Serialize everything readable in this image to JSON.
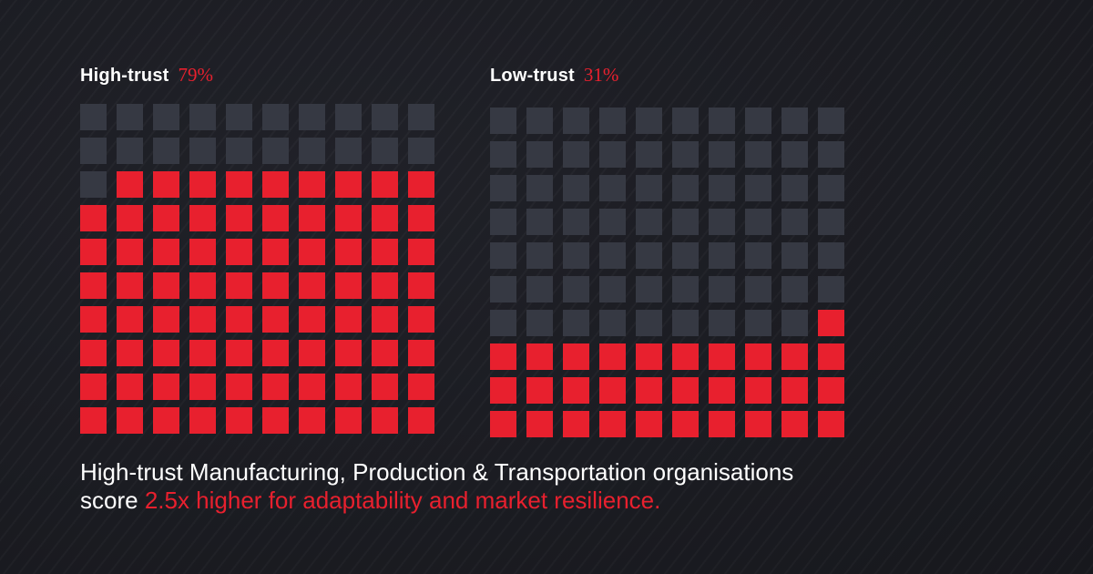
{
  "colors": {
    "filled": "#e8202e",
    "empty": "#363943",
    "background": "#1b1c22",
    "text": "#ffffff"
  },
  "chart_data": [
    {
      "type": "waffle",
      "label": "High-trust",
      "value_text": "79%",
      "value": 79,
      "total": 100,
      "rows": 10,
      "cols": 10
    },
    {
      "type": "waffle",
      "label": "Low-trust",
      "value_text": "31%",
      "value": 31,
      "total": 100,
      "rows": 10,
      "cols": 10
    }
  ],
  "caption": {
    "line1": "High-trust Manufacturing, Production & Transportation organisations",
    "line2_prefix": "score ",
    "line2_highlight": "2.5x higher for adaptability and market resilience."
  }
}
